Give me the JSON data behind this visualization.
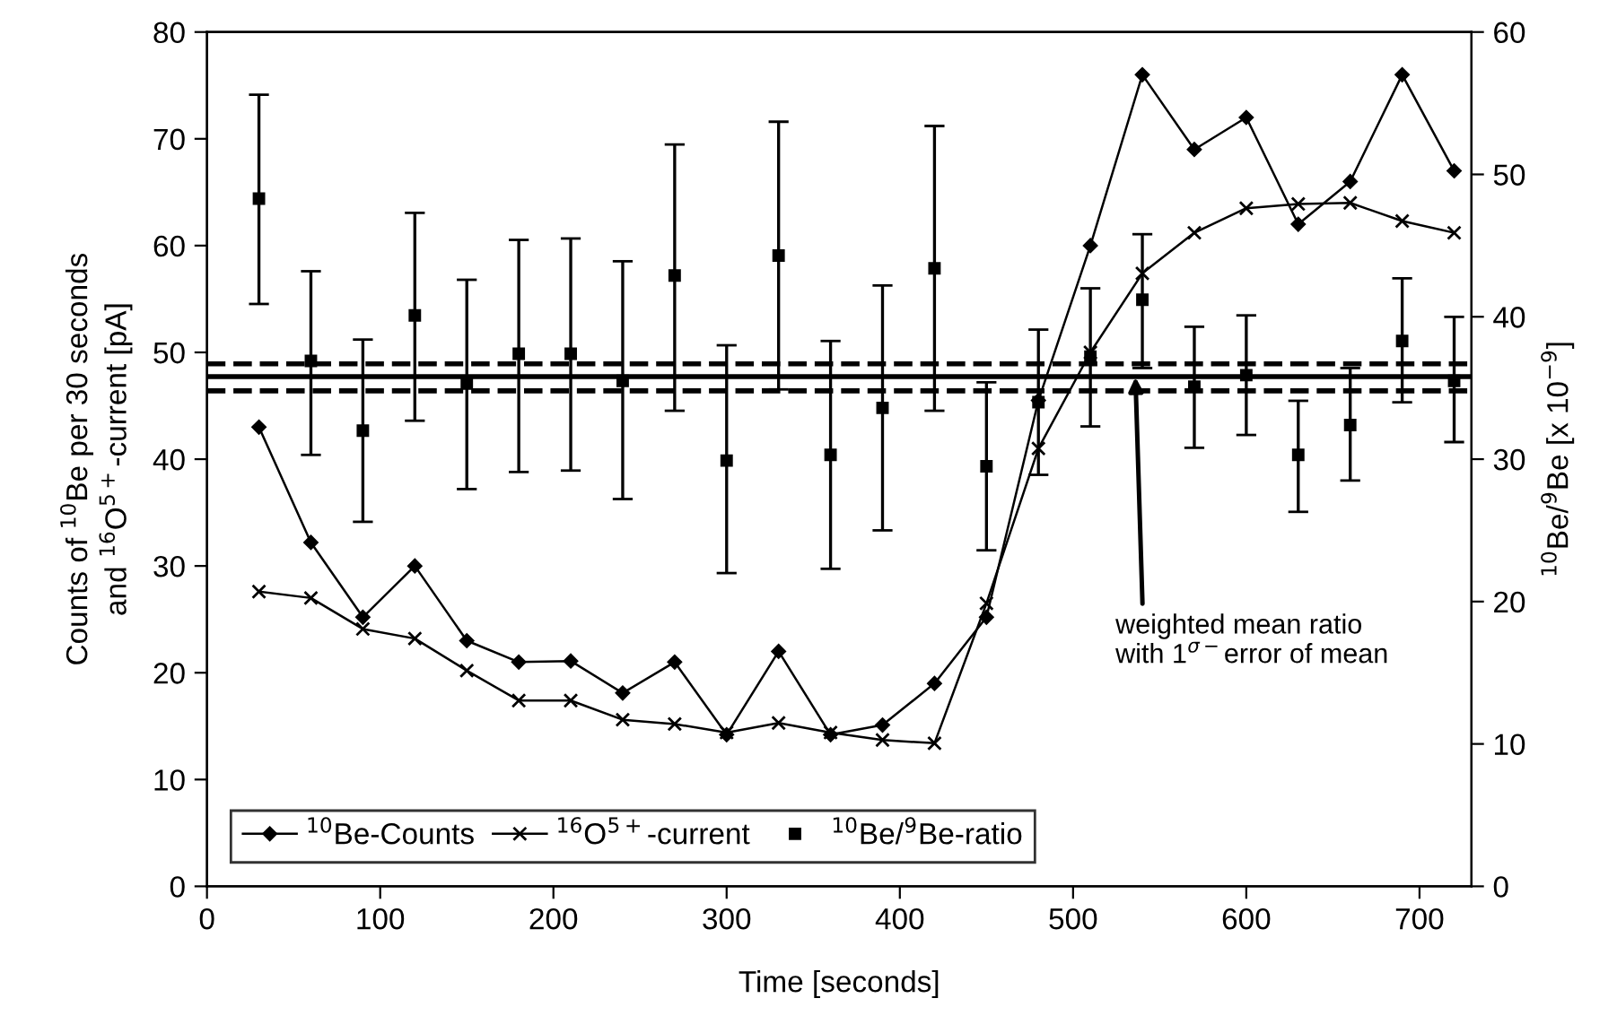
{
  "chart_data": {
    "type": "line",
    "xlabel": "Time [seconds]",
    "ylabel": "Counts of $^{10}$Be per 30 seconds\nand $^{16}$O$^{5+}$-current [pA]",
    "y2label": "$^{10}$Be/$^{9}$Be [x 10$^{−9}$]",
    "xlim": [
      0,
      730
    ],
    "xticks": [
      0,
      100,
      200,
      300,
      400,
      500,
      600,
      700
    ],
    "ylim": [
      0,
      80
    ],
    "yticks": [
      0,
      10,
      20,
      30,
      40,
      50,
      60,
      70,
      80
    ],
    "y2lim": [
      0,
      60
    ],
    "y2ticks": [
      0,
      10,
      20,
      30,
      40,
      50,
      60
    ],
    "x": [
      30,
      60,
      90,
      120,
      150,
      180,
      210,
      240,
      270,
      300,
      330,
      360,
      390,
      420,
      450,
      480,
      510,
      540,
      570,
      600,
      630,
      660,
      690,
      720
    ],
    "grid": false,
    "legend": "bottom left",
    "series": [
      {
        "name": "$^{10}$Be-Counts",
        "color": "#000000",
        "marker": "diamond",
        "values": [
          43,
          32.2,
          25.2,
          30,
          23,
          21,
          21.1,
          18.1,
          21,
          14.2,
          22,
          14.2,
          15.1,
          19,
          25.2,
          45.5,
          60,
          76,
          69,
          72,
          62,
          66,
          76,
          67
        ]
      },
      {
        "name": "$^{16}$O$^{5+}$-current",
        "color": "#000000",
        "marker": "cross",
        "values": [
          27.6,
          27,
          24.1,
          23.2,
          20.2,
          17.4,
          17.4,
          15.6,
          15.2,
          14.4,
          15.3,
          14.4,
          13.7,
          13.4,
          26.5,
          41,
          50,
          57.4,
          61.2,
          63.5,
          63.9,
          64,
          62.3,
          61.2
        ]
      },
      {
        "name": "$^{10}$Be/$^{9}$Be-ratio",
        "type": "scatter",
        "axis": "y2",
        "color": "#000000",
        "marker": "square",
        "values": [
          48.3,
          36.9,
          32.0,
          40.1,
          35.3,
          37.4,
          37.4,
          35.5,
          42.9,
          29.9,
          44.3,
          30.3,
          33.6,
          43.4,
          29.5,
          34.0,
          37.2,
          41.2,
          35.1,
          35.9,
          30.3,
          32.4,
          38.3,
          35.5
        ],
        "errors": [
          [
            40.9,
            55.6
          ],
          [
            30.3,
            43.2
          ],
          [
            25.6,
            38.4
          ],
          [
            32.7,
            47.3
          ],
          [
            27.9,
            42.6
          ],
          [
            29.1,
            45.4
          ],
          [
            29.2,
            45.5
          ],
          [
            27.2,
            43.9
          ],
          [
            33.4,
            52.1
          ],
          [
            22.0,
            38.0
          ],
          [
            34.9,
            53.7
          ],
          [
            22.3,
            38.3
          ],
          [
            25.0,
            42.2
          ],
          [
            33.4,
            53.4
          ],
          [
            23.6,
            35.4
          ],
          [
            28.9,
            39.1
          ],
          [
            32.3,
            42.0
          ],
          [
            36.4,
            45.8
          ],
          [
            30.8,
            39.3
          ],
          [
            31.7,
            40.1
          ],
          [
            26.3,
            34.1
          ],
          [
            28.5,
            36.4
          ],
          [
            34.0,
            42.7
          ],
          [
            31.2,
            40.0
          ]
        ]
      }
    ],
    "ref_lines": [
      {
        "axis": "y2",
        "value": 35.8,
        "label": null,
        "line_style": "solid",
        "color": "#000000"
      },
      {
        "axis": "y2",
        "value": 36.7,
        "label": null,
        "line_style": "dashed",
        "color": "#000000"
      },
      {
        "axis": "y2",
        "value": 34.8,
        "label": null,
        "line_style": "dashed",
        "color": "#000000"
      }
    ],
    "annotations": [
      {
        "text": "weighted mean ratio\nwith 1$^{σ−}$error of mean",
        "x": 536,
        "y": 47.7
      }
    ]
  }
}
